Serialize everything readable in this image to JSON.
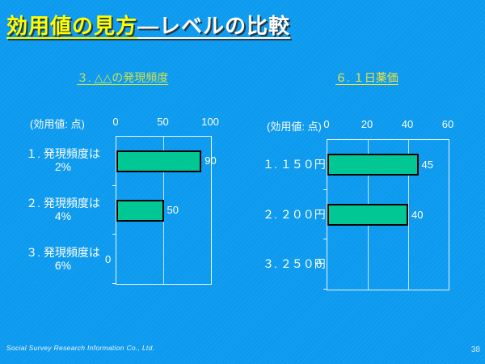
{
  "title": {
    "highlight": "効用値の見方",
    "rest": "―レベルの比較"
  },
  "footer": {
    "company": "Social Survey Research Information Co., Ltd.",
    "page_number": "38"
  },
  "colors": {
    "background": "#0c9aef",
    "bar_fill": "#00c794",
    "bar_border": "#000000",
    "title_highlight": "#ffff00",
    "title_rest": "#ffffff",
    "subtitle_left": "#cde24a",
    "subtitle_right": "#f0e43c",
    "axis_text": "#ffffff",
    "gridline": "#e6f5ff"
  },
  "chart_data": [
    {
      "type": "bar",
      "orientation": "horizontal",
      "title": "３. △△の発現頻度",
      "value_axis_label": "(効用値: 点)",
      "categories": [
        [
          "１. 発現頻度は",
          "2%"
        ],
        [
          "２. 発現頻度は",
          "4%"
        ],
        [
          "３. 発現頻度は",
          "6%"
        ]
      ],
      "values": [
        90,
        50,
        0
      ],
      "xlim": [
        0,
        100
      ],
      "ticks": [
        0,
        50,
        100
      ],
      "grid": true,
      "legend": false
    },
    {
      "type": "bar",
      "orientation": "horizontal",
      "title": "６. １日薬価",
      "value_axis_label": "(効用値: 点)",
      "categories": [
        [
          "１. １５０円"
        ],
        [
          "２. ２００円"
        ],
        [
          "３. ２５０円"
        ]
      ],
      "values": [
        45,
        40,
        0
      ],
      "xlim": [
        0,
        60
      ],
      "ticks": [
        0,
        20,
        40,
        60
      ],
      "grid": true,
      "legend": false
    }
  ]
}
